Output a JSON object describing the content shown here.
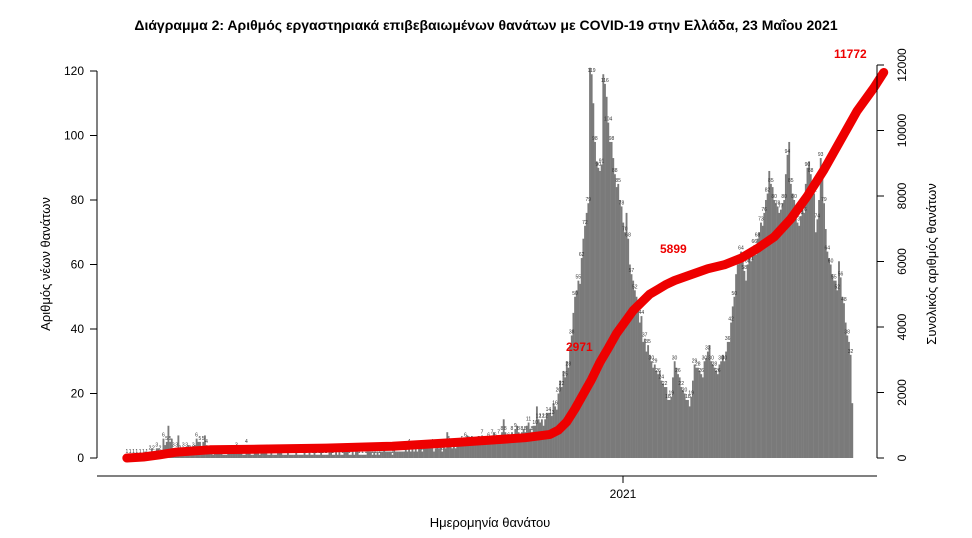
{
  "chart_data": {
    "type": "bar+line",
    "title": "Διάγραμμα 2: Αριθμός εργαστηριακά επιβεβαιωμένων θανάτων με COVID-19 στην Ελλάδα, 23 Μαΐου 2021",
    "xlabel": "Ημερομηνία θανάτου",
    "ylabel_left": "Αριθμός νέων θανάτων",
    "ylabel_right": "Συνολικός αριθμός θανάτων",
    "ylim_left": [
      0,
      120
    ],
    "ylim_right": [
      0,
      12000
    ],
    "yticks_left": [
      "0",
      "20",
      "40",
      "60",
      "80",
      "100",
      "120"
    ],
    "yticks_right": [
      "0",
      "2000",
      "4000",
      "6000",
      "8000",
      "10000",
      "12000"
    ],
    "xticks": [
      "2021"
    ],
    "daily_series": {
      "name": "Αριθμός νέων θανάτων",
      "color": "#7a7a7a",
      "values": [
        1,
        1,
        1,
        1,
        1,
        1,
        1,
        1,
        1,
        1,
        1,
        2,
        1,
        1,
        2,
        3,
        2,
        2,
        3,
        3,
        2,
        2,
        6,
        4,
        5,
        10,
        5,
        6,
        3,
        2,
        3,
        7,
        2,
        3,
        3,
        2,
        3,
        4,
        2,
        1,
        3,
        4,
        6,
        5,
        5,
        3,
        5,
        7,
        4,
        3,
        2,
        2,
        1,
        2,
        2,
        2,
        2,
        2,
        1,
        1,
        1,
        2,
        2,
        2,
        2,
        2,
        3,
        3,
        2,
        2,
        1,
        1,
        4,
        2,
        2,
        1,
        1,
        2,
        2,
        2,
        1,
        2,
        2,
        2,
        2,
        1,
        1,
        2,
        1,
        1,
        1,
        2,
        2,
        2,
        1,
        1,
        1,
        2,
        1,
        1,
        1,
        1,
        2,
        1,
        1,
        1,
        1,
        2,
        1,
        1,
        2,
        1,
        1,
        2,
        1,
        1,
        1,
        2,
        1,
        1,
        1,
        1,
        2,
        2,
        1,
        1,
        2,
        1,
        2,
        1,
        1,
        3,
        2,
        2,
        1,
        1,
        2,
        1,
        2,
        2,
        1,
        1,
        1,
        1,
        1,
        2,
        2,
        2,
        1,
        2,
        1,
        2,
        1,
        2,
        2,
        3,
        2,
        2,
        2,
        2,
        1,
        3,
        2,
        2,
        2,
        2,
        2,
        2,
        3,
        2,
        4,
        2,
        3,
        2,
        3,
        2,
        3,
        3,
        2,
        4,
        3,
        4,
        3,
        3,
        4,
        2,
        3,
        4,
        3,
        4,
        2,
        4,
        3,
        8,
        5,
        4,
        3,
        4,
        3,
        5,
        4,
        6,
        5,
        4,
        6,
        7,
        5,
        6,
        5,
        4,
        4,
        6,
        5,
        6,
        7,
        6,
        5,
        5,
        6,
        5,
        7,
        8,
        6,
        6,
        7,
        7,
        8,
        12,
        8,
        7,
        6,
        7,
        8,
        7,
        9,
        10,
        8,
        7,
        8,
        9,
        8,
        10,
        11,
        9,
        8,
        10,
        10,
        16,
        12,
        11,
        12,
        10,
        12,
        14,
        14,
        14,
        13,
        17,
        16,
        15,
        20,
        24,
        22,
        27,
        25,
        30,
        28,
        35,
        38,
        45,
        50,
        52,
        55,
        54,
        62,
        68,
        72,
        76,
        79,
        121,
        119,
        110,
        98,
        92,
        90,
        89,
        91,
        119,
        116,
        112,
        104,
        98,
        98,
        93,
        88,
        84,
        85,
        80,
        78,
        73,
        70,
        76,
        68,
        60,
        57,
        55,
        52,
        50,
        46,
        42,
        44,
        36,
        37,
        33,
        35,
        32,
        30,
        28,
        29,
        27,
        26,
        27,
        24,
        23,
        22,
        22,
        18,
        18,
        19,
        25,
        30,
        28,
        26,
        25,
        22,
        21,
        20,
        18,
        18,
        16,
        19,
        24,
        29,
        28,
        28,
        27,
        26,
        25,
        30,
        31,
        33,
        35,
        30,
        29,
        28,
        27,
        26,
        29,
        30,
        32,
        30,
        33,
        36,
        36,
        42,
        47,
        50,
        57,
        60,
        63,
        64,
        62,
        58,
        55,
        60,
        62,
        61,
        63,
        66,
        63,
        68,
        70,
        73,
        72,
        76,
        80,
        82,
        89,
        85,
        84,
        80,
        79,
        78,
        76,
        77,
        79,
        80,
        88,
        94,
        98,
        85,
        82,
        80,
        75,
        73,
        72,
        75,
        78,
        76,
        85,
        90,
        92,
        88,
        84,
        82,
        70,
        74,
        80,
        93,
        90,
        79,
        71,
        64,
        62,
        60,
        57,
        55,
        55,
        52,
        61,
        56,
        50,
        48,
        42,
        38,
        36,
        32,
        17
      ]
    },
    "cumulative_series": {
      "name": "Συνολικός αριθμός θανάτων",
      "color": "#ee0000",
      "x": [
        0,
        10,
        20,
        30,
        50,
        80,
        120,
        160,
        200,
        240,
        255,
        260,
        265,
        270,
        275,
        280,
        285,
        290,
        295,
        300,
        305,
        310,
        315,
        320,
        325,
        330,
        340,
        350,
        360,
        370,
        380,
        390,
        400,
        410,
        420,
        430,
        440,
        450,
        456
      ],
      "values": [
        0,
        30,
        100,
        180,
        250,
        270,
        300,
        360,
        480,
        620,
        720,
        850,
        1100,
        1500,
        1950,
        2400,
        2920,
        3350,
        3800,
        4150,
        4500,
        4750,
        5000,
        5150,
        5300,
        5420,
        5600,
        5780,
        5900,
        6100,
        6400,
        6750,
        7300,
        8000,
        8800,
        9700,
        10600,
        11300,
        11772
      ]
    },
    "annotations": {
      "cum_mid": "2971",
      "cum_second": "5899",
      "cum_final": "11772"
    }
  }
}
